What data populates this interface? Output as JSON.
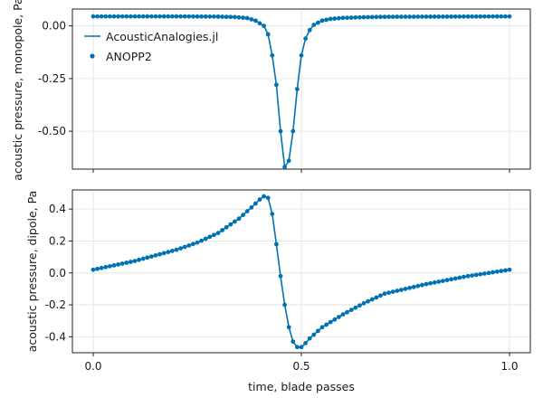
{
  "chart_data": {
    "type": "line",
    "xlabel": "time, blade passes",
    "x_ticks": [
      0.0,
      0.5,
      1.0
    ],
    "x_tick_labels": [
      "0.0",
      "0.5",
      "1.0"
    ],
    "xlim": [
      -0.05,
      1.05
    ],
    "grid": true,
    "legend_placement": "top-left of upper panel",
    "colors": {
      "series": "#0072b2",
      "axis": "#222222",
      "grid": "#e6e6e6"
    },
    "panels": [
      {
        "id": "monopole",
        "ylabel": "acoustic pressure, monopole, Pa",
        "ylim": [
          -0.68,
          0.08
        ],
        "y_ticks": [
          0.0,
          -0.25,
          -0.5
        ],
        "y_tick_labels": [
          "0.00",
          "-0.25",
          "-0.50"
        ],
        "series": [
          {
            "name": "AcousticAnalogies.jl",
            "style": "line"
          },
          {
            "name": "ANOPP2",
            "style": "markers"
          }
        ],
        "curve": {
          "x": [
            0.0,
            0.2,
            0.3,
            0.34,
            0.37,
            0.39,
            0.41,
            0.42,
            0.43,
            0.44,
            0.45,
            0.46,
            0.47,
            0.48,
            0.49,
            0.5,
            0.51,
            0.52,
            0.53,
            0.55,
            0.57,
            0.6,
            0.65,
            0.7,
            1.0
          ],
          "y": [
            0.045,
            0.045,
            0.044,
            0.042,
            0.037,
            0.025,
            0.0,
            -0.04,
            -0.14,
            -0.28,
            -0.5,
            -0.67,
            -0.64,
            -0.5,
            -0.3,
            -0.14,
            -0.06,
            -0.02,
            0.005,
            0.025,
            0.033,
            0.038,
            0.041,
            0.043,
            0.045
          ]
        }
      },
      {
        "id": "dipole",
        "ylabel": "acoustic pressure, dipole, Pa",
        "ylim": [
          -0.5,
          0.52
        ],
        "y_ticks": [
          0.4,
          0.2,
          0.0,
          -0.2,
          -0.4
        ],
        "y_tick_labels": [
          "0.4",
          "0.2",
          "0.0",
          "-0.2",
          "-0.4"
        ],
        "series": [
          {
            "name": "AcousticAnalogies.jl",
            "style": "line"
          },
          {
            "name": "ANOPP2",
            "style": "markers"
          }
        ],
        "curve": {
          "x": [
            0.0,
            0.1,
            0.2,
            0.25,
            0.3,
            0.35,
            0.38,
            0.4,
            0.41,
            0.42,
            0.43,
            0.44,
            0.45,
            0.46,
            0.47,
            0.48,
            0.49,
            0.5,
            0.51,
            0.52,
            0.55,
            0.6,
            0.65,
            0.7,
            0.8,
            0.9,
            1.0
          ],
          "y": [
            0.02,
            0.075,
            0.145,
            0.19,
            0.25,
            0.34,
            0.41,
            0.46,
            0.48,
            0.47,
            0.37,
            0.18,
            -0.02,
            -0.2,
            -0.34,
            -0.43,
            -0.465,
            -0.465,
            -0.44,
            -0.41,
            -0.34,
            -0.26,
            -0.19,
            -0.13,
            -0.07,
            -0.02,
            0.02
          ]
        }
      }
    ]
  }
}
